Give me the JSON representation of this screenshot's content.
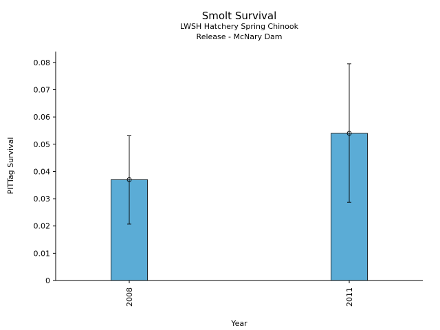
{
  "chart_data": {
    "type": "bar",
    "title": "Smolt Survival",
    "subtitle_lines": [
      "LWSH Hatchery Spring Chinook",
      "Release - McNary Dam"
    ],
    "xlabel": "Year",
    "ylabel": "PITTag Survival",
    "categories": [
      "2008",
      "2011"
    ],
    "values": [
      0.037,
      0.054
    ],
    "error_low": [
      0.0207,
      0.0287
    ],
    "error_high": [
      0.0531,
      0.0795
    ],
    "ylim": [
      0,
      0.084
    ],
    "yticks": [
      0,
      0.01,
      0.02,
      0.03,
      0.04,
      0.05,
      0.06,
      0.07,
      0.08
    ],
    "ytick_labels": [
      "0",
      "0.01",
      "0.02",
      "0.03",
      "0.04",
      "0.05",
      "0.06",
      "0.07",
      "0.08"
    ],
    "bar_color": "#5bacd6",
    "grid": false,
    "xtick_rotation": "vertical"
  }
}
